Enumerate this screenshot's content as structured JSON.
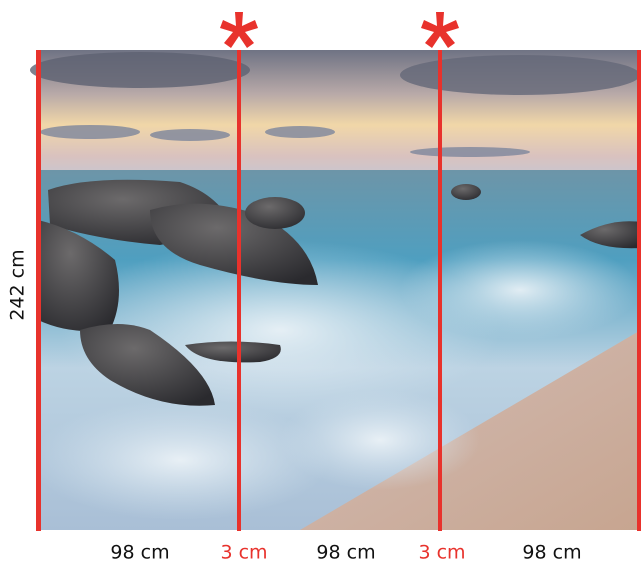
{
  "dimensions": {
    "height": "242 cm",
    "widths": [
      "98 cm",
      "3 cm",
      "98 cm",
      "3 cm",
      "98 cm"
    ]
  }
}
